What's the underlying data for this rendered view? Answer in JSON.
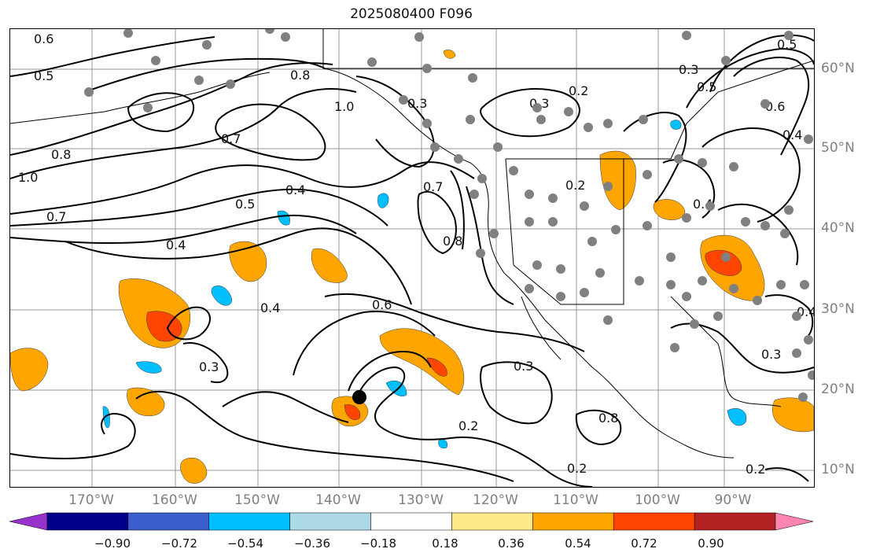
{
  "title": "2025080400 F096",
  "lat_labels": [
    "60°N",
    "50°N",
    "40°N",
    "30°N",
    "20°N",
    "10°N"
  ],
  "lon_labels": [
    "170°W",
    "160°W",
    "150°W",
    "140°W",
    "130°W",
    "120°W",
    "110°W",
    "100°W",
    "90°W"
  ],
  "colorbar": {
    "ticks": [
      "−0.90",
      "−0.72",
      "−0.54",
      "−0.36",
      "−0.18",
      "0.18",
      "0.36",
      "0.54",
      "0.72",
      "0.90"
    ],
    "colors": [
      "#9932cc",
      "#00008b",
      "#3a5fcd",
      "#00bfff",
      "#add8e6",
      "#ffffff",
      "#ffe88a",
      "#ffa500",
      "#ff4500",
      "#b22222",
      "#ff85b0"
    ]
  },
  "contour_labels": [
    "0.6",
    "0.5",
    "0.8",
    "1.0",
    "0.7",
    "0.8",
    "1.0",
    "0.5",
    "0.4",
    "0.7",
    "0.4",
    "0.7",
    "0.8",
    "0.3",
    "0.6",
    "0.3",
    "0.4",
    "0.3",
    "0.2",
    "0.2",
    "0.3",
    "0.2",
    "0.5",
    "0.6",
    "0.4",
    "0.3",
    "0.2",
    "0.4",
    "0.2",
    "0.5",
    "0.3",
    "0.4",
    "0.8"
  ],
  "marker": {
    "name": "storm-center",
    "color": "#000000"
  }
}
